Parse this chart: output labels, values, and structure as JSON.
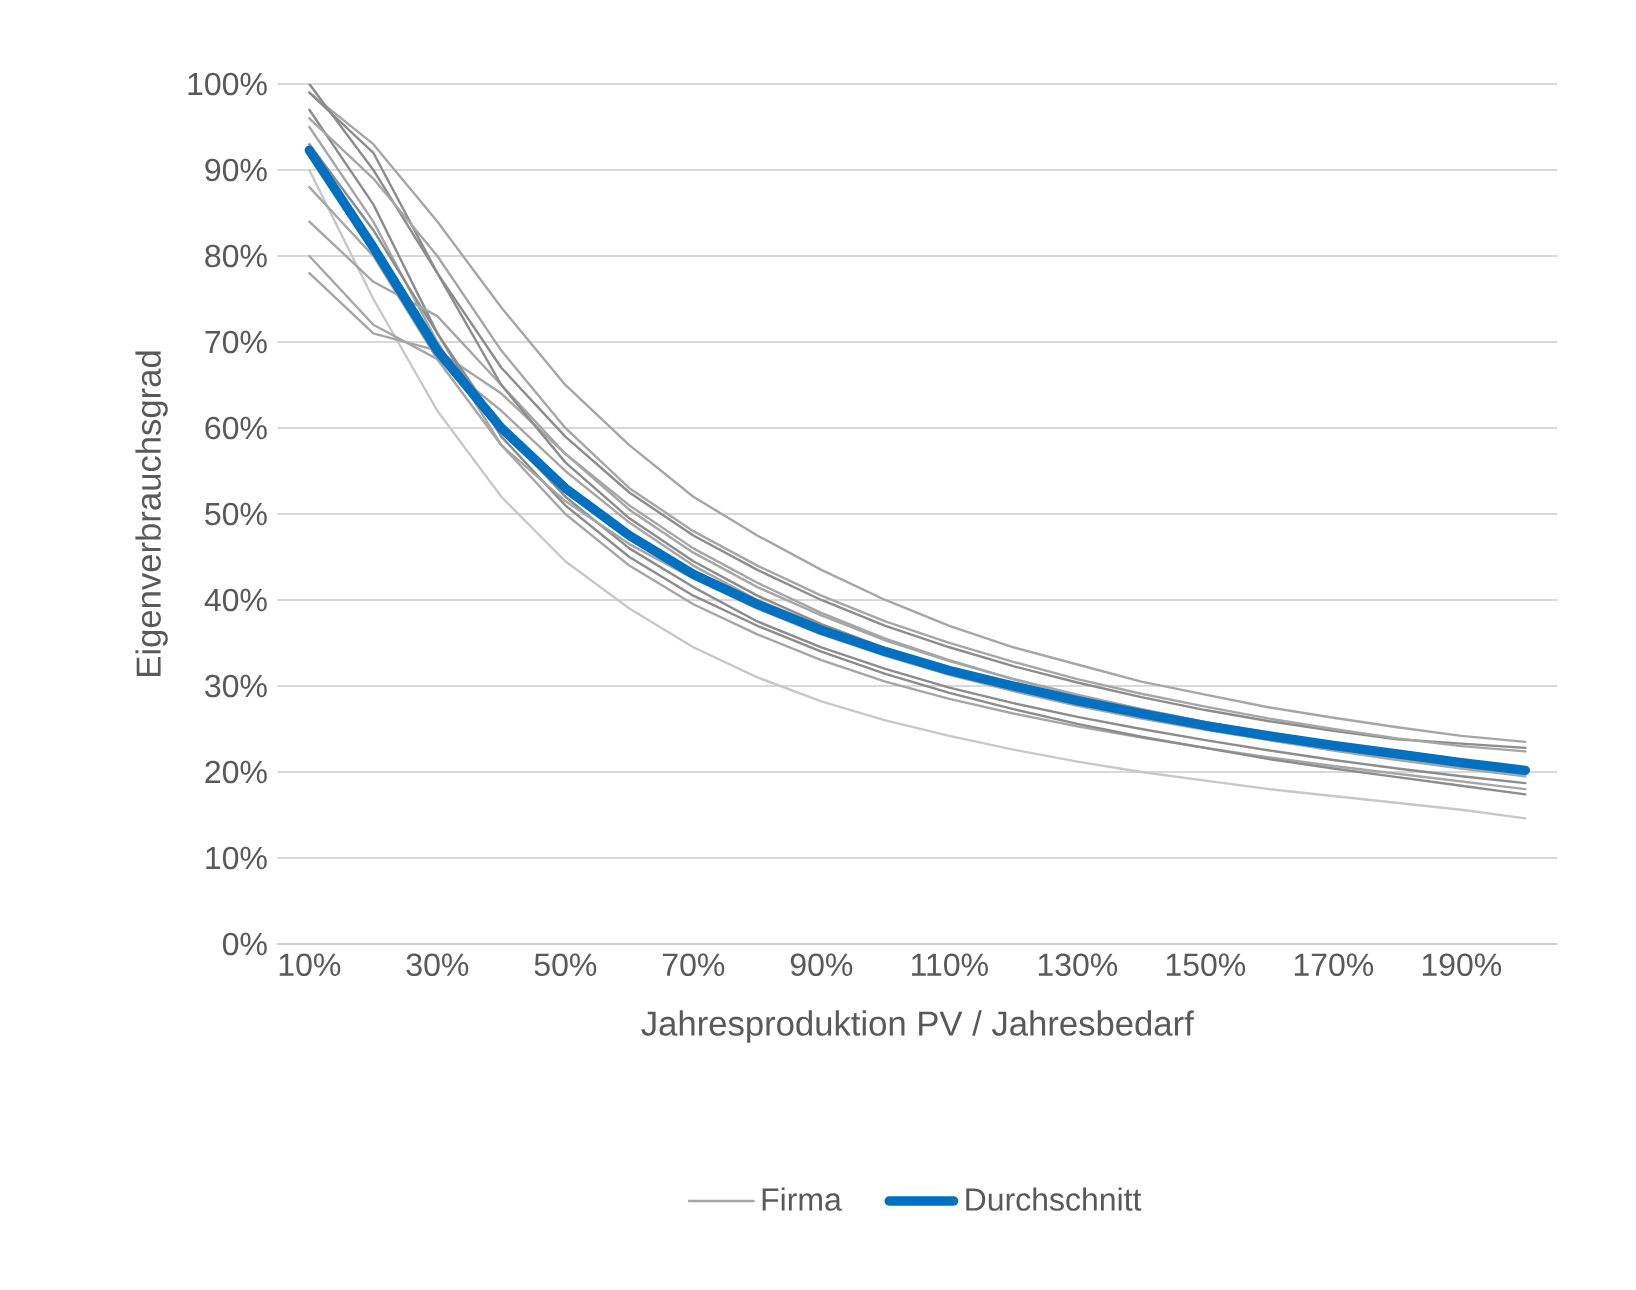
{
  "chart_data": {
    "type": "line",
    "xlabel": "Jahresproduktion PV / Jahresbedarf",
    "ylabel": "Eigenverbrauchsgrad",
    "categories": [
      "10%",
      null,
      "30%",
      null,
      "50%",
      null,
      "70%",
      null,
      "90%",
      null,
      "110%",
      null,
      "130%",
      null,
      "150%",
      null,
      "170%",
      null,
      "190%",
      null
    ],
    "ylim": [
      0,
      100
    ],
    "yticks": [
      {
        "value": 0,
        "label": "0%"
      },
      {
        "value": 10,
        "label": "10%"
      },
      {
        "value": 20,
        "label": "20%"
      },
      {
        "value": 30,
        "label": "30%"
      },
      {
        "value": 40,
        "label": "40%"
      },
      {
        "value": 50,
        "label": "50%"
      },
      {
        "value": 60,
        "label": "60%"
      },
      {
        "value": 70,
        "label": "70%"
      },
      {
        "value": 80,
        "label": "80%"
      },
      {
        "value": 90,
        "label": "90%"
      },
      {
        "value": 100,
        "label": "100%"
      }
    ],
    "grid": "y",
    "legend": "bottom",
    "series": [
      {
        "name": "Firma",
        "color": "#a6a6a6",
        "values": [
          99,
          93,
          84,
          74,
          65,
          58,
          52,
          47.5,
          43.5,
          40,
          37,
          34.5,
          32.5,
          30.5,
          29,
          27.5,
          26.3,
          25.2,
          24.2,
          23.5
        ]
      },
      {
        "color": "#8c8c8c",
        "values": [
          100,
          90,
          78,
          67,
          59,
          52.5,
          47.5,
          43.5,
          40,
          37,
          34.5,
          32.3,
          30.4,
          28.7,
          27.2,
          25.9,
          24.8,
          23.8,
          23.3,
          22.8
        ]
      },
      {
        "color": "#c8c8c8",
        "values": [
          90,
          75,
          62,
          52,
          44.5,
          39,
          34.5,
          31,
          28.2,
          26,
          24.2,
          22.6,
          21.2,
          20,
          19,
          18,
          17.2,
          16.4,
          15.6,
          14.6
        ]
      },
      {
        "color": "#a6a6a6",
        "values": [
          80,
          72,
          68,
          62,
          55,
          49,
          44,
          40,
          37,
          34,
          31.8,
          29.8,
          28,
          26.5,
          25,
          23.7,
          22.5,
          21.4,
          20.4,
          19.5
        ]
      },
      {
        "color": "#a6a6a6",
        "values": [
          78,
          71,
          69,
          64,
          57,
          51,
          46,
          42,
          38.5,
          35.5,
          33,
          30.8,
          29,
          27.3,
          25.8,
          24.5,
          23.3,
          22.2,
          21.2,
          20.3
        ]
      },
      {
        "color": "#8c8c8c",
        "values": [
          97,
          86,
          71,
          60,
          52,
          46,
          41.5,
          37.5,
          34.5,
          32,
          29.8,
          28,
          26.4,
          25,
          23.7,
          22.5,
          21.4,
          20.4,
          19.5,
          18.7
        ]
      },
      {
        "color": "#a6a6a6",
        "values": [
          95,
          84,
          70,
          58,
          50,
          44,
          39.5,
          36,
          33,
          30.5,
          28.5,
          26.8,
          25.3,
          24,
          22.8,
          21.7,
          20.7,
          19.8,
          18.9,
          18
        ]
      },
      {
        "color": "#8c8c8c",
        "values": [
          93,
          83,
          71,
          59,
          51,
          45,
          40.5,
          37,
          34,
          31.4,
          29.2,
          27.3,
          25.6,
          24.1,
          22.8,
          21.5,
          20.4,
          19.4,
          18.4,
          17.4
        ]
      },
      {
        "color": "#a6a6a6",
        "values": [
          88,
          80,
          68,
          58,
          51.5,
          46.5,
          42.5,
          39,
          36,
          33.5,
          31.3,
          29.4,
          27.7,
          26.2,
          24.9,
          23.7,
          22.6,
          21.6,
          20.6,
          19.7
        ]
      },
      {
        "color": "#a6a6a6",
        "values": [
          84,
          77,
          73,
          65,
          57,
          50.5,
          45.5,
          41.5,
          38.2,
          35.3,
          32.9,
          30.8,
          28.9,
          27.3,
          25.8,
          24.5,
          23.3,
          22.2,
          21.2,
          20.3
        ]
      },
      {
        "color": "#8c8c8c",
        "values": [
          99,
          92,
          78,
          65,
          56,
          49.5,
          44.5,
          40.5,
          37.2,
          34.4,
          32,
          29.9,
          28.1,
          26.5,
          25.1,
          23.8,
          22.7,
          21.7,
          20.8,
          19.9
        ]
      },
      {
        "color": "#a6a6a6",
        "values": [
          96,
          89,
          80,
          69,
          60,
          53,
          48,
          44,
          40.5,
          37.5,
          35,
          32.8,
          30.8,
          29.1,
          27.6,
          26.2,
          25,
          23.9,
          23,
          22.4
        ]
      },
      {
        "name": "Durchschnitt",
        "color": "#0070c0",
        "values": [
          92.3,
          81,
          69,
          60,
          53,
          47.5,
          43,
          39.5,
          36.5,
          34,
          31.8,
          30,
          28.3,
          26.8,
          25.4,
          24.2,
          23.1,
          22.1,
          21.1,
          20.2
        ]
      }
    ]
  }
}
